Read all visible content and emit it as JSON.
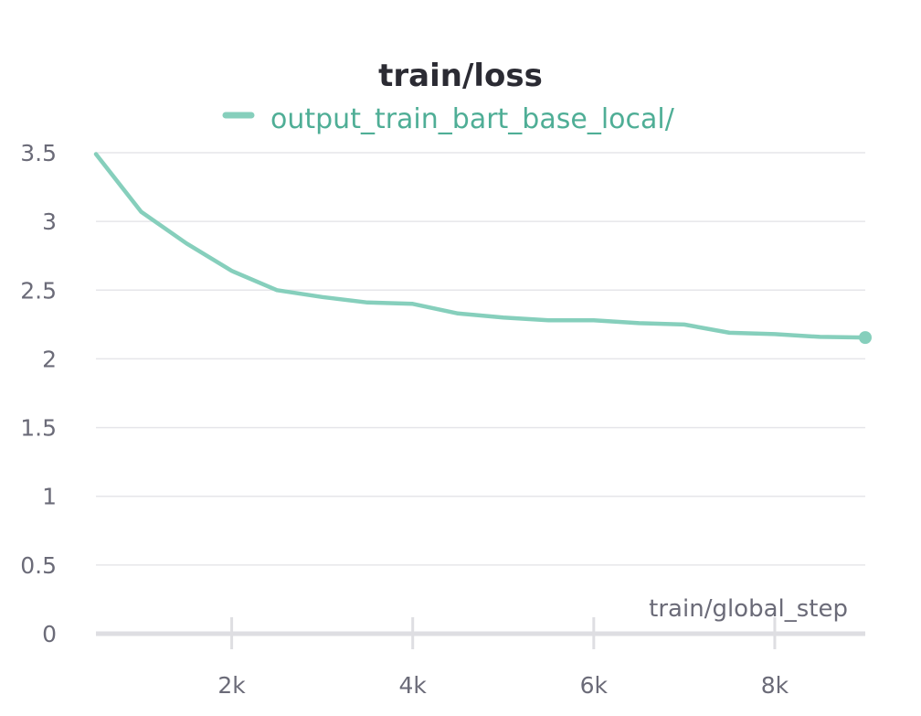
{
  "chart_data": {
    "type": "line",
    "title": "train/loss",
    "xlabel": "train/global_step",
    "ylabel": "",
    "xlim": [
      500,
      9000
    ],
    "ylim": [
      0,
      3.5
    ],
    "grid": true,
    "legend_position": "top-center",
    "x_ticks": [
      {
        "value": 2000,
        "label": "2k"
      },
      {
        "value": 4000,
        "label": "4k"
      },
      {
        "value": 6000,
        "label": "6k"
      },
      {
        "value": 8000,
        "label": "8k"
      }
    ],
    "y_ticks": [
      {
        "value": 0,
        "label": "0"
      },
      {
        "value": 0.5,
        "label": "0.5"
      },
      {
        "value": 1,
        "label": "1"
      },
      {
        "value": 1.5,
        "label": "1.5"
      },
      {
        "value": 2,
        "label": "2"
      },
      {
        "value": 2.5,
        "label": "2.5"
      },
      {
        "value": 3,
        "label": "3"
      },
      {
        "value": 3.5,
        "label": "3.5"
      }
    ],
    "series": [
      {
        "name": "output_train_bart_base_local/",
        "color": "#86cfbc",
        "x": [
          500,
          1000,
          1500,
          2000,
          2500,
          3000,
          3500,
          4000,
          4500,
          5000,
          5500,
          6000,
          6500,
          7000,
          7500,
          8000,
          8500,
          9000
        ],
        "y": [
          3.49,
          3.07,
          2.84,
          2.64,
          2.5,
          2.45,
          2.41,
          2.4,
          2.33,
          2.3,
          2.28,
          2.28,
          2.26,
          2.25,
          2.19,
          2.18,
          2.16,
          2.155
        ]
      }
    ]
  },
  "colors": {
    "grid": "#e6e6ea",
    "axis": "#dedee2",
    "legend_text": "#4fae96"
  }
}
